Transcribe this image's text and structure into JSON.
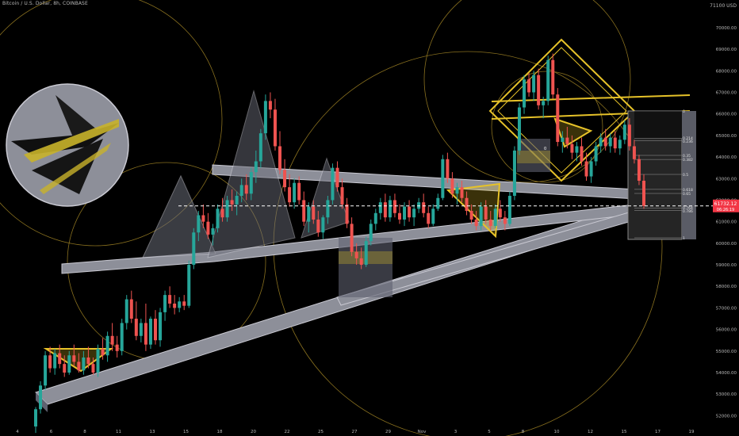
{
  "header": {
    "symbol_line": "Bitcoin / U.S. Dollar, 8h, COINBASE"
  },
  "price_axis": {
    "currency_label": "71100 USD",
    "ticks": [
      "70000.00",
      "69000.00",
      "68000.00",
      "67000.00",
      "66000.00",
      "65000.00",
      "64000.00",
      "63000.00",
      "62000.00",
      "61000.00",
      "60000.00",
      "59000.00",
      "58000.00",
      "57000.00",
      "56000.00",
      "55000.00",
      "54000.00",
      "53000.00",
      "52000.00"
    ]
  },
  "time_axis": {
    "ticks": [
      "4",
      "6",
      "8",
      "11",
      "13",
      "15",
      "18",
      "20",
      "22",
      "25",
      "27",
      "29",
      "Nov",
      "3",
      "5",
      "8",
      "10",
      "12",
      "15",
      "17",
      "19"
    ]
  },
  "price_tag": {
    "price": "61732.12",
    "countdown": "06:26:19",
    "color": "#f23645"
  },
  "fib_levels": [
    "0",
    "0.214",
    "0.236",
    "0.35",
    "0.382",
    "0.5",
    "0.618",
    "0.65",
    "0.764",
    "0.786",
    "1"
  ],
  "chart_data": {
    "type": "candlestick",
    "title": "Bitcoin / U.S. Dollar, 8h, COINBASE",
    "ylim": [
      51500,
      71100
    ],
    "colors": {
      "up": "#26a69a",
      "down": "#ef5350",
      "drawing_gray": "#9a9aa6",
      "drawing_gold": "#e6c229",
      "fib_box": "#2a2a2a"
    },
    "candles": [
      {
        "o": 51500,
        "h": 52400,
        "l": 51200,
        "c": 52300
      },
      {
        "o": 52300,
        "h": 53600,
        "l": 52100,
        "c": 53400
      },
      {
        "o": 53400,
        "h": 55000,
        "l": 53200,
        "c": 54800
      },
      {
        "o": 54800,
        "h": 55200,
        "l": 54000,
        "c": 54200
      },
      {
        "o": 54200,
        "h": 55100,
        "l": 53900,
        "c": 54900
      },
      {
        "o": 54900,
        "h": 55300,
        "l": 54200,
        "c": 54400
      },
      {
        "o": 54400,
        "h": 54800,
        "l": 53800,
        "c": 54000
      },
      {
        "o": 54000,
        "h": 55000,
        "l": 53900,
        "c": 54800
      },
      {
        "o": 54800,
        "h": 55300,
        "l": 54300,
        "c": 54500
      },
      {
        "o": 54500,
        "h": 54900,
        "l": 54000,
        "c": 54100
      },
      {
        "o": 54100,
        "h": 55000,
        "l": 53900,
        "c": 54700
      },
      {
        "o": 54700,
        "h": 55200,
        "l": 54200,
        "c": 54400
      },
      {
        "o": 54400,
        "h": 54700,
        "l": 53900,
        "c": 54000
      },
      {
        "o": 54000,
        "h": 55300,
        "l": 53800,
        "c": 55100
      },
      {
        "o": 55100,
        "h": 55600,
        "l": 54600,
        "c": 54800
      },
      {
        "o": 54800,
        "h": 55900,
        "l": 54500,
        "c": 55700
      },
      {
        "o": 55700,
        "h": 56300,
        "l": 55000,
        "c": 55300
      },
      {
        "o": 55300,
        "h": 55700,
        "l": 54700,
        "c": 55000
      },
      {
        "o": 55000,
        "h": 56500,
        "l": 54800,
        "c": 56300
      },
      {
        "o": 56300,
        "h": 57600,
        "l": 56000,
        "c": 57400
      },
      {
        "o": 57400,
        "h": 57800,
        "l": 56300,
        "c": 56500
      },
      {
        "o": 56500,
        "h": 57300,
        "l": 55500,
        "c": 55700
      },
      {
        "o": 55700,
        "h": 56500,
        "l": 55400,
        "c": 56300
      },
      {
        "o": 56300,
        "h": 57200,
        "l": 55000,
        "c": 55300
      },
      {
        "o": 55300,
        "h": 56600,
        "l": 55100,
        "c": 56500
      },
      {
        "o": 56500,
        "h": 56900,
        "l": 55300,
        "c": 55500
      },
      {
        "o": 55500,
        "h": 57000,
        "l": 55200,
        "c": 56800
      },
      {
        "o": 56800,
        "h": 57800,
        "l": 56400,
        "c": 57600
      },
      {
        "o": 57600,
        "h": 58000,
        "l": 57000,
        "c": 57200
      },
      {
        "o": 57200,
        "h": 57600,
        "l": 56700,
        "c": 57000
      },
      {
        "o": 57000,
        "h": 57500,
        "l": 56800,
        "c": 57300
      },
      {
        "o": 57300,
        "h": 57600,
        "l": 56900,
        "c": 57100
      },
      {
        "o": 57100,
        "h": 59200,
        "l": 57000,
        "c": 59000
      },
      {
        "o": 59000,
        "h": 60700,
        "l": 58800,
        "c": 60500
      },
      {
        "o": 60500,
        "h": 61500,
        "l": 60100,
        "c": 61300
      },
      {
        "o": 61300,
        "h": 61800,
        "l": 60700,
        "c": 61000
      },
      {
        "o": 61000,
        "h": 61400,
        "l": 60200,
        "c": 60400
      },
      {
        "o": 60400,
        "h": 60900,
        "l": 59900,
        "c": 60700
      },
      {
        "o": 60700,
        "h": 61800,
        "l": 60500,
        "c": 61600
      },
      {
        "o": 61600,
        "h": 62100,
        "l": 61000,
        "c": 61200
      },
      {
        "o": 61200,
        "h": 62200,
        "l": 61000,
        "c": 62000
      },
      {
        "o": 62000,
        "h": 62500,
        "l": 61500,
        "c": 61800
      },
      {
        "o": 61800,
        "h": 62400,
        "l": 61300,
        "c": 62200
      },
      {
        "o": 62200,
        "h": 63000,
        "l": 61900,
        "c": 62700
      },
      {
        "o": 62700,
        "h": 63200,
        "l": 62000,
        "c": 62300
      },
      {
        "o": 62300,
        "h": 63500,
        "l": 62000,
        "c": 63300
      },
      {
        "o": 63300,
        "h": 64300,
        "l": 62800,
        "c": 63800
      },
      {
        "o": 63800,
        "h": 65300,
        "l": 63500,
        "c": 65100
      },
      {
        "o": 65100,
        "h": 66900,
        "l": 64800,
        "c": 66600
      },
      {
        "o": 66600,
        "h": 67000,
        "l": 65800,
        "c": 66200
      },
      {
        "o": 66200,
        "h": 66700,
        "l": 64300,
        "c": 64500
      },
      {
        "o": 64500,
        "h": 65200,
        "l": 63200,
        "c": 63400
      },
      {
        "o": 63400,
        "h": 63900,
        "l": 62400,
        "c": 62600
      },
      {
        "o": 62600,
        "h": 63200,
        "l": 61700,
        "c": 61900
      },
      {
        "o": 61900,
        "h": 63000,
        "l": 61600,
        "c": 62800
      },
      {
        "o": 62800,
        "h": 63100,
        "l": 61800,
        "c": 62000
      },
      {
        "o": 62000,
        "h": 62400,
        "l": 60800,
        "c": 61000
      },
      {
        "o": 61000,
        "h": 61900,
        "l": 60500,
        "c": 61700
      },
      {
        "o": 61700,
        "h": 62000,
        "l": 60900,
        "c": 61100
      },
      {
        "o": 61100,
        "h": 61500,
        "l": 60300,
        "c": 60500
      },
      {
        "o": 60500,
        "h": 61300,
        "l": 60200,
        "c": 61200
      },
      {
        "o": 61200,
        "h": 62200,
        "l": 60900,
        "c": 62000
      },
      {
        "o": 62000,
        "h": 63700,
        "l": 61800,
        "c": 63500
      },
      {
        "o": 63500,
        "h": 63800,
        "l": 62400,
        "c": 62600
      },
      {
        "o": 62600,
        "h": 63000,
        "l": 61600,
        "c": 61800
      },
      {
        "o": 61800,
        "h": 62100,
        "l": 60700,
        "c": 60900
      },
      {
        "o": 60900,
        "h": 61200,
        "l": 59400,
        "c": 59600
      },
      {
        "o": 59600,
        "h": 60000,
        "l": 59000,
        "c": 59300
      },
      {
        "o": 59300,
        "h": 59800,
        "l": 58800,
        "c": 59000
      },
      {
        "o": 59000,
        "h": 60300,
        "l": 58900,
        "c": 60100
      },
      {
        "o": 60100,
        "h": 61100,
        "l": 59900,
        "c": 60900
      },
      {
        "o": 60900,
        "h": 61600,
        "l": 60600,
        "c": 61400
      },
      {
        "o": 61400,
        "h": 62100,
        "l": 61100,
        "c": 61900
      },
      {
        "o": 61900,
        "h": 62300,
        "l": 61000,
        "c": 61200
      },
      {
        "o": 61200,
        "h": 62200,
        "l": 61000,
        "c": 62000
      },
      {
        "o": 62000,
        "h": 62300,
        "l": 61200,
        "c": 61400
      },
      {
        "o": 61400,
        "h": 61800,
        "l": 60900,
        "c": 61100
      },
      {
        "o": 61100,
        "h": 61900,
        "l": 60800,
        "c": 61700
      },
      {
        "o": 61700,
        "h": 62000,
        "l": 61000,
        "c": 61200
      },
      {
        "o": 61200,
        "h": 61800,
        "l": 60800,
        "c": 61600
      },
      {
        "o": 61600,
        "h": 62100,
        "l": 61400,
        "c": 61900
      },
      {
        "o": 61900,
        "h": 62300,
        "l": 61200,
        "c": 61400
      },
      {
        "o": 61400,
        "h": 61700,
        "l": 60700,
        "c": 60900
      },
      {
        "o": 60900,
        "h": 61800,
        "l": 60800,
        "c": 61600
      },
      {
        "o": 61600,
        "h": 62300,
        "l": 61500,
        "c": 62100
      },
      {
        "o": 62100,
        "h": 64100,
        "l": 62000,
        "c": 63900
      },
      {
        "o": 63900,
        "h": 64200,
        "l": 62800,
        "c": 63000
      },
      {
        "o": 63000,
        "h": 63300,
        "l": 62100,
        "c": 62300
      },
      {
        "o": 62300,
        "h": 62800,
        "l": 61800,
        "c": 62600
      },
      {
        "o": 62600,
        "h": 62900,
        "l": 61900,
        "c": 62100
      },
      {
        "o": 62100,
        "h": 62400,
        "l": 61300,
        "c": 61500
      },
      {
        "o": 61500,
        "h": 61800,
        "l": 60900,
        "c": 61100
      },
      {
        "o": 61100,
        "h": 61500,
        "l": 60600,
        "c": 60800
      },
      {
        "o": 60800,
        "h": 61900,
        "l": 60600,
        "c": 61700
      },
      {
        "o": 61700,
        "h": 62000,
        "l": 60900,
        "c": 61100
      },
      {
        "o": 61100,
        "h": 61500,
        "l": 60600,
        "c": 60800
      },
      {
        "o": 60800,
        "h": 61800,
        "l": 60700,
        "c": 61600
      },
      {
        "o": 61600,
        "h": 62000,
        "l": 61000,
        "c": 61200
      },
      {
        "o": 61200,
        "h": 61500,
        "l": 60600,
        "c": 60900
      },
      {
        "o": 60900,
        "h": 62400,
        "l": 60800,
        "c": 62200
      },
      {
        "o": 62200,
        "h": 64500,
        "l": 62000,
        "c": 64300
      },
      {
        "o": 64300,
        "h": 66500,
        "l": 64100,
        "c": 66300
      },
      {
        "o": 66300,
        "h": 67800,
        "l": 66000,
        "c": 67600
      },
      {
        "o": 67600,
        "h": 67900,
        "l": 66800,
        "c": 67000
      },
      {
        "o": 67000,
        "h": 68000,
        "l": 66600,
        "c": 67800
      },
      {
        "o": 67800,
        "h": 68100,
        "l": 66200,
        "c": 66400
      },
      {
        "o": 66400,
        "h": 66800,
        "l": 65800,
        "c": 66600
      },
      {
        "o": 66600,
        "h": 68700,
        "l": 66400,
        "c": 68500
      },
      {
        "o": 68500,
        "h": 68800,
        "l": 66700,
        "c": 66900
      },
      {
        "o": 66900,
        "h": 67200,
        "l": 64500,
        "c": 64700
      },
      {
        "o": 64700,
        "h": 65200,
        "l": 64200,
        "c": 64900
      },
      {
        "o": 64900,
        "h": 65400,
        "l": 64400,
        "c": 64600
      },
      {
        "o": 64600,
        "h": 65000,
        "l": 63900,
        "c": 64200
      },
      {
        "o": 64200,
        "h": 64700,
        "l": 63800,
        "c": 64500
      },
      {
        "o": 64500,
        "h": 64900,
        "l": 63600,
        "c": 63800
      },
      {
        "o": 63800,
        "h": 64200,
        "l": 62900,
        "c": 63100
      },
      {
        "o": 63100,
        "h": 64000,
        "l": 62800,
        "c": 63800
      },
      {
        "o": 63800,
        "h": 64700,
        "l": 63600,
        "c": 64500
      },
      {
        "o": 64500,
        "h": 65100,
        "l": 64200,
        "c": 64900
      },
      {
        "o": 64900,
        "h": 65300,
        "l": 64300,
        "c": 64500
      },
      {
        "o": 64500,
        "h": 65100,
        "l": 64200,
        "c": 64900
      },
      {
        "o": 64900,
        "h": 65200,
        "l": 64200,
        "c": 64400
      },
      {
        "o": 64400,
        "h": 65000,
        "l": 64100,
        "c": 64800
      },
      {
        "o": 64800,
        "h": 65700,
        "l": 64600,
        "c": 65500
      },
      {
        "o": 65500,
        "h": 65800,
        "l": 64300,
        "c": 64500
      },
      {
        "o": 64500,
        "h": 64800,
        "l": 63700,
        "c": 63900
      },
      {
        "o": 63900,
        "h": 64100,
        "l": 62700,
        "c": 62900
      },
      {
        "o": 62900,
        "h": 63200,
        "l": 61600,
        "c": 61732
      }
    ]
  }
}
